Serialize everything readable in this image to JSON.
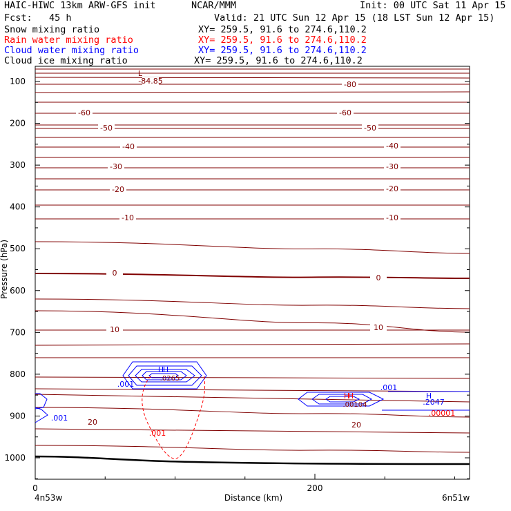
{
  "header": {
    "model": "HAIC-HIWC 13km ARW-GFS init",
    "org": "NCAR/MMM",
    "init": "Init: 00 UTC Sat 11 Apr 15",
    "fcst": "Fcst:   45 h",
    "valid": "Valid: 21 UTC Sun 12 Apr 15 (18 LST Sun 12 Apr 15)"
  },
  "fields": [
    {
      "name": "Snow mixing ratio",
      "xy": "XY= 259.5, 91.6 to 274.6,110.2",
      "color": "#000000"
    },
    {
      "name": "Rain water mixing ratio",
      "xy": "XY= 259.5, 91.6 to 274.6,110.2",
      "color": "#ff0000"
    },
    {
      "name": "Cloud water mixing ratio",
      "xy": "XY= 259.5, 91.6 to 274.6,110.2",
      "color": "#0000ff"
    },
    {
      "name": "Cloud ice mixing ratio",
      "xy": "XY= 259.5, 91.6 to 274.6,110.2",
      "color": "#000000"
    }
  ],
  "colors": {
    "temperature": "#800000",
    "cloud_water": "#0000ff",
    "rain": "#ff0000",
    "terrain": "#000000"
  },
  "chart_data": {
    "type": "line",
    "xlabel": "Distance (km)",
    "ylabel": "Pressure (hPa)",
    "xlim": [
      0,
      311
    ],
    "ylim": [
      1050,
      70
    ],
    "x_ticks": [
      "0",
      "200"
    ],
    "y_ticks": [
      "100",
      "200",
      "300",
      "400",
      "500",
      "600",
      "700",
      "800",
      "900",
      "1000"
    ],
    "endpoint_left": "4n53w",
    "endpoint_right": "6n51w",
    "temperature_isotherms": {
      "contour_values": [
        -84.85,
        -80,
        -60,
        -50,
        -40,
        -30,
        -20,
        -10,
        0,
        10,
        20
      ],
      "labels": [
        "-84.85",
        "-80",
        "-60",
        "-50",
        "-40",
        "-30",
        "-20",
        "-10",
        "0",
        "10",
        "20"
      ],
      "low_marker": "L"
    },
    "cloud_water_mixing_ratio": {
      "labels": [
        ".001",
        ".001",
        ".001",
        ".2047"
      ],
      "max_markers": [
        "H",
        "H",
        "H"
      ]
    },
    "rain_water_mixing_ratio": {
      "labels": [
        ".001",
        ".00001"
      ],
      "max_markers": [
        "H",
        "H"
      ]
    },
    "maxima_values": [
      ".0265",
      ".00104"
    ]
  }
}
